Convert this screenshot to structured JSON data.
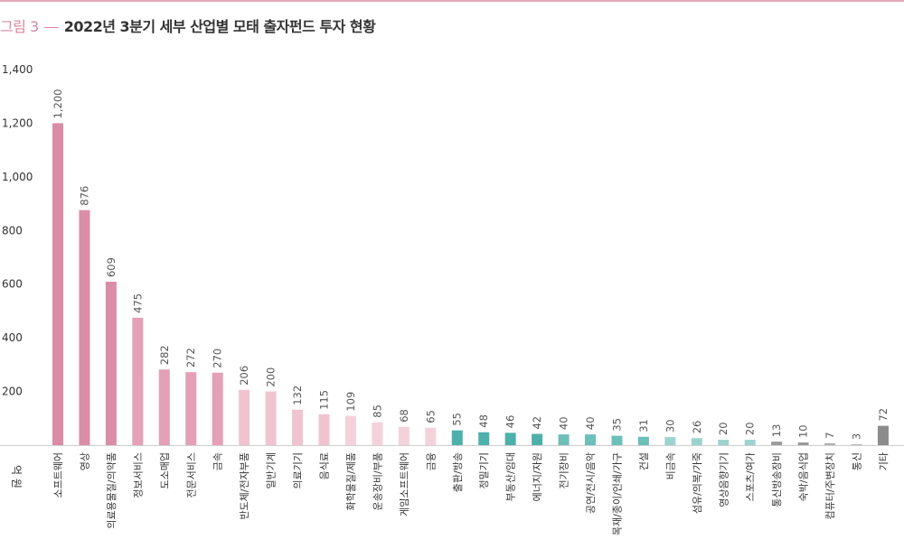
{
  "title": {
    "fig_label": "그림 3",
    "text": "2022년 3분기 세부 산업별 모태 출자펀드 투자 현황"
  },
  "colors": {
    "accent": "#d9879f",
    "rule": "#e3a9b9"
  },
  "chart_data": {
    "type": "bar",
    "unit_label": "억 원",
    "ylim": [
      0,
      1400
    ],
    "yticks": [
      200,
      400,
      600,
      800,
      1000,
      1200,
      1400
    ],
    "ytick_labels": [
      "200",
      "400",
      "600",
      "800",
      "1,000",
      "1,200",
      "1,400"
    ],
    "grid": false,
    "categories": [
      "소프트웨어",
      "영상",
      "의료용물질/의약품",
      "정보서비스",
      "도소매업",
      "전문서비스",
      "금속",
      "반도체/전자부품",
      "일반기계",
      "의료기기",
      "음식료",
      "화학물질/제품",
      "운송장비/부품",
      "게임소프트웨어",
      "금융",
      "출판/방송",
      "정밀기기",
      "부동산/임대",
      "에너지/자원",
      "전기장비",
      "공연/전시/음악",
      "목재/종이/인쇄/가구",
      "건설",
      "비금속",
      "섬유/의복/가죽",
      "영상음향기기",
      "스포츠/여가",
      "통신방송장비",
      "숙박/음식업",
      "컴퓨터/주변장치",
      "통신",
      "기타"
    ],
    "values": [
      1200,
      876,
      609,
      475,
      282,
      272,
      270,
      206,
      200,
      132,
      115,
      109,
      85,
      68,
      65,
      55,
      48,
      46,
      42,
      40,
      40,
      35,
      31,
      30,
      26,
      20,
      20,
      13,
      10,
      7,
      3,
      72
    ],
    "value_labels": [
      "1,200",
      "876",
      "609",
      "475",
      "282",
      "272",
      "270",
      "206",
      "200",
      "132",
      "115",
      "109",
      "85",
      "68",
      "65",
      "55",
      "48",
      "46",
      "42",
      "40",
      "40",
      "35",
      "31",
      "30",
      "26",
      "20",
      "20",
      "13",
      "10",
      "7",
      "3",
      "72"
    ],
    "bar_colors": [
      "#db8ca6",
      "#db8ca6",
      "#db8ca6",
      "#e3a0b6",
      "#e3a0b6",
      "#e3a0b6",
      "#e3a0b6",
      "#f0c3d0",
      "#f0c3d0",
      "#f0c3d0",
      "#f0c3d0",
      "#f4d2dc",
      "#f4d2dc",
      "#f4d2dc",
      "#f4d2dc",
      "#4db0aa",
      "#4db0aa",
      "#4db0aa",
      "#4db0aa",
      "#6dbfba",
      "#6dbfba",
      "#6dbfba",
      "#6dbfba",
      "#9dd3cf",
      "#9dd3cf",
      "#9dd3cf",
      "#9dd3cf",
      "#9a9a9a",
      "#9a9a9a",
      "#b0b0b0",
      "#b0b0b0",
      "#8c8c8c"
    ]
  }
}
